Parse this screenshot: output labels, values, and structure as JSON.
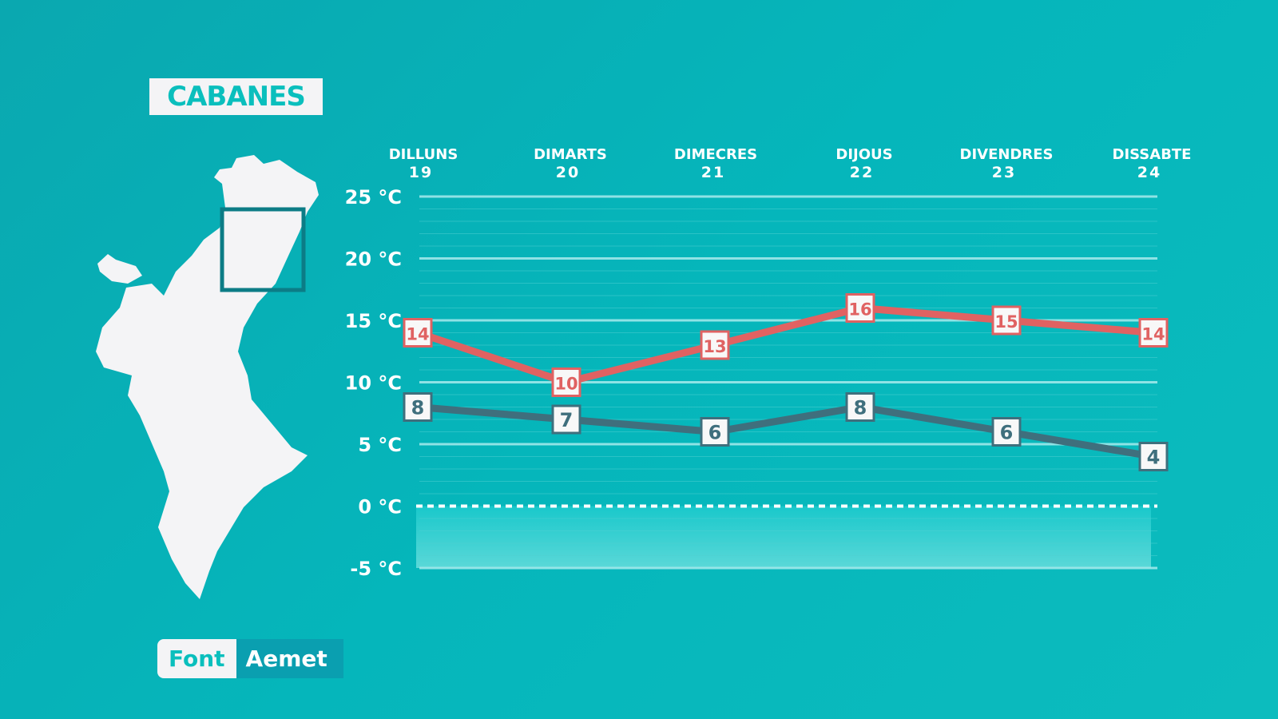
{
  "location": "CABANES",
  "source": {
    "label": "Font",
    "value": "Aemet"
  },
  "colors": {
    "max": "#e06262",
    "min": "#3f6f7d",
    "background": "#05b6bb"
  },
  "chart_data": {
    "type": "line",
    "categories": [
      {
        "day": "DILLUNS",
        "date": "19"
      },
      {
        "day": "DIMARTS",
        "date": "20"
      },
      {
        "day": "DIMECRES",
        "date": "21"
      },
      {
        "day": "DIJOUS",
        "date": "22"
      },
      {
        "day": "DIVENDRES",
        "date": "23"
      },
      {
        "day": "DISSABTE",
        "date": "24"
      }
    ],
    "series": [
      {
        "key": "max",
        "values": [
          14,
          10,
          13,
          16,
          15,
          14
        ]
      },
      {
        "key": "min",
        "values": [
          8,
          7,
          6,
          8,
          6,
          4
        ]
      }
    ],
    "yticks": [
      "25 °C",
      "20 °C",
      "15 °C",
      "10 °C",
      "5 °C",
      "0 °C",
      "-5 °C"
    ],
    "ylim": [
      -5,
      25
    ],
    "grid": true,
    "zero_line": "dashed"
  }
}
